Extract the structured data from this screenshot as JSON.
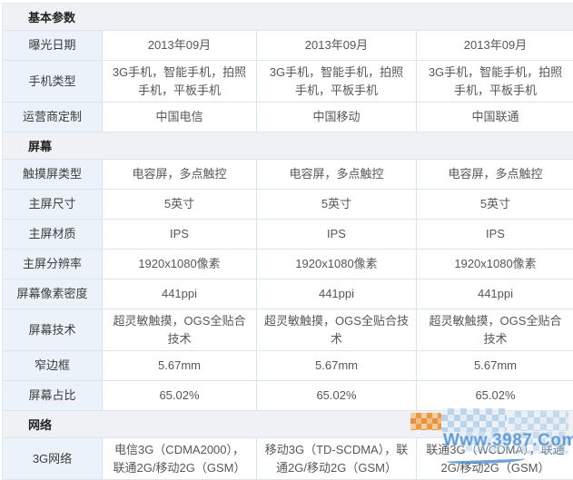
{
  "table": {
    "sections": [
      {
        "title": "基本参数",
        "rows": [
          {
            "label": "曝光日期",
            "values": [
              "2013年09月",
              "2013年09月",
              "2013年09月"
            ]
          },
          {
            "label": "手机类型",
            "values": [
              "3G手机，智能手机，拍照手机，平板手机",
              "3G手机，智能手机，拍照手机，平板手机",
              "3G手机，智能手机，拍照手机，平板手机"
            ]
          },
          {
            "label": "运营商定制",
            "values": [
              "中国电信",
              "中国移动",
              "中国联通"
            ]
          }
        ]
      },
      {
        "title": "屏幕",
        "rows": [
          {
            "label": "触摸屏类型",
            "values": [
              "电容屏，多点触控",
              "电容屏，多点触控",
              "电容屏，多点触控"
            ]
          },
          {
            "label": "主屏尺寸",
            "values": [
              "5英寸",
              "5英寸",
              "5英寸"
            ]
          },
          {
            "label": "主屏材质",
            "values": [
              "IPS",
              "IPS",
              "IPS"
            ]
          },
          {
            "label": "主屏分辨率",
            "values": [
              "1920x1080像素",
              "1920x1080像素",
              "1920x1080像素"
            ]
          },
          {
            "label": "屏幕像素密度",
            "values": [
              "441ppi",
              "441ppi",
              "441ppi"
            ]
          },
          {
            "label": "屏幕技术",
            "values": [
              "超灵敏触摸，OGS全贴合技术",
              "超灵敏触摸，OGS全贴合技术",
              "超灵敏触摸，OGS全贴合技术"
            ]
          },
          {
            "label": "窄边框",
            "values": [
              "5.67mm",
              "5.67mm",
              "5.67mm"
            ]
          },
          {
            "label": "屏幕占比",
            "values": [
              "65.02%",
              "65.02%",
              "65.02%"
            ]
          }
        ]
      },
      {
        "title": "网络",
        "rows": [
          {
            "label": "3G网络",
            "values": [
              "电信3G（CDMA2000），联通2G/移动2G（GSM）",
              "移动3G（TD-SCDMA），联通2G/移动2G（GSM）",
              "联通3G（WCDMA），联通2G/移动2G（GSM）"
            ]
          }
        ]
      }
    ]
  },
  "watermark": {
    "text": "Www.3987.Com"
  },
  "colors": {
    "label_cell_bg": "#ebf2f9",
    "section_header_bg": "#eff1f4",
    "border": "#d6e3f0",
    "watermark_blue": "#3882c7",
    "watermark_orange": "#e9963e"
  }
}
